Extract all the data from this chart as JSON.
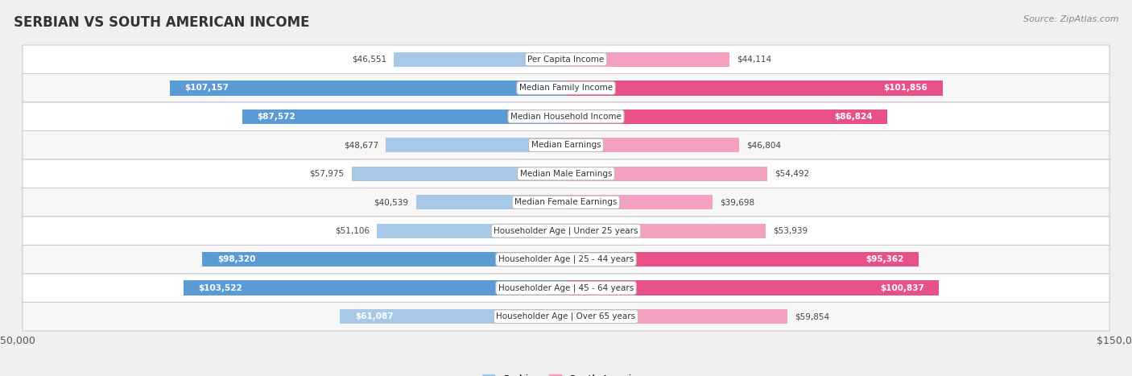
{
  "title": "SERBIAN VS SOUTH AMERICAN INCOME",
  "source": "Source: ZipAtlas.com",
  "categories": [
    "Per Capita Income",
    "Median Family Income",
    "Median Household Income",
    "Median Earnings",
    "Median Male Earnings",
    "Median Female Earnings",
    "Householder Age | Under 25 years",
    "Householder Age | 25 - 44 years",
    "Householder Age | 45 - 64 years",
    "Householder Age | Over 65 years"
  ],
  "serbian_values": [
    46551,
    107157,
    87572,
    48677,
    57975,
    40539,
    51106,
    98320,
    103522,
    61087
  ],
  "south_american_values": [
    44114,
    101856,
    86824,
    46804,
    54492,
    39698,
    53939,
    95362,
    100837,
    59854
  ],
  "serbian_labels": [
    "$46,551",
    "$107,157",
    "$87,572",
    "$48,677",
    "$57,975",
    "$40,539",
    "$51,106",
    "$98,320",
    "$103,522",
    "$61,087"
  ],
  "south_american_labels": [
    "$44,114",
    "$101,856",
    "$86,824",
    "$46,804",
    "$54,492",
    "$39,698",
    "$53,939",
    "$95,362",
    "$100,837",
    "$59,854"
  ],
  "serbian_color_light": "#A8C8E8",
  "serbian_color_dark": "#5B9BD5",
  "south_american_color_light": "#F4A0C0",
  "south_american_color_dark": "#E8508A",
  "dark_threshold": 80000,
  "max_value": 150000,
  "bar_height": 0.52,
  "background_color": "#f0f0f0",
  "row_bg_even": "#ffffff",
  "row_bg_odd": "#f7f7f7",
  "label_color_inside": "#ffffff",
  "label_color_outside": "#444444",
  "inside_threshold": 60000,
  "legend_serbian": "Serbian",
  "legend_sa": "South American"
}
